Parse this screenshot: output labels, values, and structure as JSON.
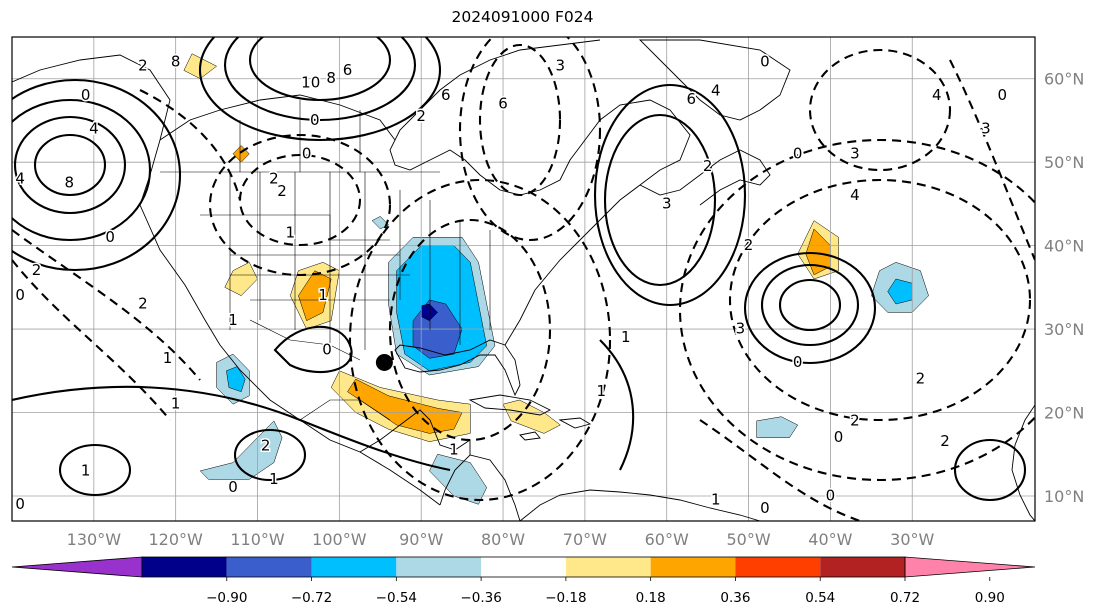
{
  "title": "2024091000 F024",
  "map": {
    "projection": "PlateCarree",
    "lon_range": [
      -140,
      -15
    ],
    "lat_range": [
      7,
      65
    ],
    "lon_ticks": [
      "130°W",
      "120°W",
      "110°W",
      "100°W",
      "90°W",
      "80°W",
      "70°W",
      "60°W",
      "50°W",
      "40°W",
      "30°W"
    ],
    "lat_ticks": [
      "60°N",
      "50°N",
      "40°N",
      "30°N",
      "20°N",
      "10°N"
    ],
    "grid": true,
    "marker": {
      "lon": -94.5,
      "lat": 26.0,
      "symbol": "filled-circle"
    }
  },
  "colorbar": {
    "orientation": "horizontal",
    "extend": "both",
    "bounds": [
      "−0.90",
      "−0.72",
      "−0.54",
      "−0.36",
      "−0.18",
      "0.18",
      "0.36",
      "0.54",
      "0.72",
      "0.90"
    ],
    "colors": [
      "#9932cc",
      "#00008b",
      "#3a5fcd",
      "#00bfff",
      "#add8e6",
      "#ffffff",
      "#ffe88a",
      "#ffa500",
      "#ff3f00",
      "#b22222",
      "#ff82ab"
    ]
  },
  "contour_labels": [
    {
      "text": "2",
      "lon": -124,
      "lat": 61.5
    },
    {
      "text": "8",
      "lon": -120,
      "lat": 62
    },
    {
      "text": "10",
      "lon": -103.5,
      "lat": 59.5
    },
    {
      "text": "8",
      "lon": -101,
      "lat": 60
    },
    {
      "text": "6",
      "lon": -99,
      "lat": 61
    },
    {
      "text": "6",
      "lon": -87,
      "lat": 58
    },
    {
      "text": "2",
      "lon": -90,
      "lat": 55.5
    },
    {
      "text": "0",
      "lon": -103,
      "lat": 55
    },
    {
      "text": "0",
      "lon": -104,
      "lat": 51
    },
    {
      "text": "0",
      "lon": -131,
      "lat": 58
    },
    {
      "text": "4",
      "lon": -130,
      "lat": 54
    },
    {
      "text": "8",
      "lon": -133,
      "lat": 47.5
    },
    {
      "text": "4",
      "lon": -139,
      "lat": 48
    },
    {
      "text": "2",
      "lon": -107,
      "lat": 46.5
    },
    {
      "text": "1",
      "lon": -106,
      "lat": 41.5
    },
    {
      "text": "2",
      "lon": -108,
      "lat": 48
    },
    {
      "text": "1",
      "lon": -102,
      "lat": 34
    },
    {
      "text": "2",
      "lon": -124,
      "lat": 33
    },
    {
      "text": "1",
      "lon": -120,
      "lat": 21
    },
    {
      "text": "0",
      "lon": -128,
      "lat": 41
    },
    {
      "text": "2",
      "lon": -137,
      "lat": 37
    },
    {
      "text": "0",
      "lon": -139,
      "lat": 34
    },
    {
      "text": "1",
      "lon": -121,
      "lat": 26.5
    },
    {
      "text": "0",
      "lon": -101.5,
      "lat": 27.5
    },
    {
      "text": "1",
      "lon": -113,
      "lat": 31
    },
    {
      "text": "2",
      "lon": -109,
      "lat": 16
    },
    {
      "text": "1",
      "lon": -108,
      "lat": 12
    },
    {
      "text": "1",
      "lon": -131,
      "lat": 13
    },
    {
      "text": "0",
      "lon": -113,
      "lat": 11
    },
    {
      "text": "0",
      "lon": -139,
      "lat": 9
    },
    {
      "text": "1",
      "lon": -68,
      "lat": 22.5
    },
    {
      "text": "3",
      "lon": -73,
      "lat": 61.5
    },
    {
      "text": "6",
      "lon": -80,
      "lat": 57
    },
    {
      "text": "6",
      "lon": -57,
      "lat": 57.5
    },
    {
      "text": "4",
      "lon": -54,
      "lat": 58.5
    },
    {
      "text": "0",
      "lon": -48,
      "lat": 62
    },
    {
      "text": "2",
      "lon": -55,
      "lat": 49.5
    },
    {
      "text": "3",
      "lon": -37,
      "lat": 51
    },
    {
      "text": "0",
      "lon": -44,
      "lat": 51
    },
    {
      "text": "4",
      "lon": -37,
      "lat": 46
    },
    {
      "text": "2",
      "lon": -50,
      "lat": 40
    },
    {
      "text": "4",
      "lon": -27,
      "lat": 58
    },
    {
      "text": "3",
      "lon": -21,
      "lat": 54
    },
    {
      "text": "0",
      "lon": -19,
      "lat": 58
    },
    {
      "text": "3",
      "lon": -51,
      "lat": 30
    },
    {
      "text": "0",
      "lon": -44,
      "lat": 26
    },
    {
      "text": "1",
      "lon": -65,
      "lat": 29
    },
    {
      "text": "2",
      "lon": -29,
      "lat": 24
    },
    {
      "text": "2",
      "lon": -37,
      "lat": 19
    },
    {
      "text": "0",
      "lon": -39,
      "lat": 17
    },
    {
      "text": "2",
      "lon": -26,
      "lat": 16.5
    },
    {
      "text": "0",
      "lon": -40,
      "lat": 10
    },
    {
      "text": "1",
      "lon": -54,
      "lat": 9.5
    },
    {
      "text": "0",
      "lon": -48,
      "lat": 8.5
    },
    {
      "text": "1",
      "lon": -86,
      "lat": 15.5
    },
    {
      "text": "3",
      "lon": -60,
      "lat": 45
    }
  ],
  "shaded_regions": [
    {
      "class": "neg-0.54-0.36",
      "points": [
        [
          -86,
          40
        ],
        [
          -84,
          38
        ],
        [
          -83,
          33
        ],
        [
          -82,
          28
        ],
        [
          -84,
          26
        ],
        [
          -89,
          25
        ],
        [
          -92,
          27
        ],
        [
          -93,
          32
        ],
        [
          -93,
          37
        ],
        [
          -90,
          40
        ]
      ]
    },
    {
      "class": "neg-0.36-0.18",
      "points": [
        [
          -85,
          41
        ],
        [
          -83,
          38
        ],
        [
          -82,
          33
        ],
        [
          -81,
          28
        ],
        [
          -83,
          25.5
        ],
        [
          -89,
          24.5
        ],
        [
          -93,
          27
        ],
        [
          -94,
          33
        ],
        [
          -94,
          38
        ],
        [
          -91,
          41
        ]
      ]
    },
    {
      "class": "neg-0.72-0.54",
      "points": [
        [
          -87,
          33
        ],
        [
          -85,
          30
        ],
        [
          -86,
          27
        ],
        [
          -89,
          26.5
        ],
        [
          -91,
          28
        ],
        [
          -91,
          31
        ],
        [
          -89,
          33.5
        ]
      ]
    },
    {
      "class": "neg-0.90-0.72",
      "points": [
        [
          -89,
          33
        ],
        [
          -88,
          32
        ],
        [
          -89,
          31
        ],
        [
          -90,
          31.5
        ],
        [
          -90,
          32.8
        ]
      ]
    },
    {
      "class": "pos-0.36-0.54",
      "points": [
        [
          -98,
          24
        ],
        [
          -94,
          22
        ],
        [
          -88,
          20.5
        ],
        [
          -85,
          20
        ],
        [
          -86,
          18
        ],
        [
          -89,
          17.5
        ],
        [
          -93,
          18.5
        ],
        [
          -96,
          20.5
        ],
        [
          -99,
          22.5
        ]
      ]
    },
    {
      "class": "pos-0.18-0.36",
      "points": [
        [
          -100,
          25
        ],
        [
          -95,
          23
        ],
        [
          -88,
          21.5
        ],
        [
          -84,
          21
        ],
        [
          -84,
          17.5
        ],
        [
          -89,
          16.5
        ],
        [
          -94,
          18
        ],
        [
          -98,
          20
        ],
        [
          -101,
          23
        ]
      ]
    },
    {
      "class": "pos-0.36-0.54",
      "points": [
        [
          -103,
          37
        ],
        [
          -101,
          36
        ],
        [
          -102,
          32
        ],
        [
          -104,
          31
        ],
        [
          -105,
          34
        ]
      ]
    },
    {
      "class": "pos-0.18-0.36",
      "points": [
        [
          -102,
          38
        ],
        [
          -100,
          37
        ],
        [
          -101,
          31
        ],
        [
          -104,
          30
        ],
        [
          -106,
          34
        ],
        [
          -105,
          37
        ]
      ]
    },
    {
      "class": "pos-0.18-0.36",
      "points": [
        [
          -111,
          38
        ],
        [
          -110,
          36
        ],
        [
          -112,
          34
        ],
        [
          -114,
          35
        ],
        [
          -113,
          37
        ]
      ]
    },
    {
      "class": "pos-0.18-0.36",
      "points": [
        [
          -78,
          21.5
        ],
        [
          -75,
          20
        ],
        [
          -73,
          18.5
        ],
        [
          -75,
          17.5
        ],
        [
          -79,
          19
        ],
        [
          -80,
          21
        ]
      ]
    },
    {
      "class": "pos-0.36-0.54",
      "points": [
        [
          -42,
          42
        ],
        [
          -40,
          40
        ],
        [
          -40,
          37.5
        ],
        [
          -42,
          36.5
        ],
        [
          -43,
          39
        ]
      ]
    },
    {
      "class": "pos-0.18-0.36",
      "points": [
        [
          -42,
          43
        ],
        [
          -39,
          41
        ],
        [
          -39,
          37
        ],
        [
          -42,
          36
        ],
        [
          -44,
          39
        ]
      ]
    },
    {
      "class": "neg-0.36-0.18",
      "points": [
        [
          -32,
          38
        ],
        [
          -29,
          37
        ],
        [
          -28,
          34
        ],
        [
          -30,
          32
        ],
        [
          -33,
          32
        ],
        [
          -35,
          34
        ],
        [
          -34,
          37
        ]
      ]
    },
    {
      "class": "neg-0.54-0.36",
      "points": [
        [
          -32,
          36
        ],
        [
          -30,
          35.5
        ],
        [
          -30,
          33.5
        ],
        [
          -32,
          33
        ],
        [
          -33,
          34.5
        ]
      ]
    },
    {
      "class": "neg-0.36-0.18",
      "points": [
        [
          -113,
          27
        ],
        [
          -111,
          25
        ],
        [
          -111,
          22
        ],
        [
          -113,
          21
        ],
        [
          -115,
          23
        ],
        [
          -115,
          26
        ]
      ]
    },
    {
      "class": "neg-0.54-0.36",
      "points": [
        [
          -112.5,
          25.5
        ],
        [
          -111.5,
          24
        ],
        [
          -112,
          22.5
        ],
        [
          -113.5,
          23
        ],
        [
          -113.8,
          25
        ]
      ]
    },
    {
      "class": "neg-0.36-0.18",
      "points": [
        [
          -116,
          12
        ],
        [
          -111,
          12
        ],
        [
          -108,
          14
        ],
        [
          -107,
          17
        ],
        [
          -108,
          19
        ],
        [
          -110,
          17
        ],
        [
          -113,
          14
        ],
        [
          -117,
          13
        ]
      ]
    },
    {
      "class": "neg-0.36-0.18",
      "points": [
        [
          -88,
          15
        ],
        [
          -84,
          14
        ],
        [
          -82,
          11
        ],
        [
          -83,
          9
        ],
        [
          -86,
          10
        ],
        [
          -89,
          13
        ]
      ]
    },
    {
      "class": "neg-0.36-0.18",
      "points": [
        [
          -49,
          19
        ],
        [
          -46,
          19.5
        ],
        [
          -44,
          18.5
        ],
        [
          -45,
          17
        ],
        [
          -49,
          17
        ]
      ]
    },
    {
      "class": "pos-0.18-0.36",
      "points": [
        [
          -118,
          63
        ],
        [
          -115,
          61.5
        ],
        [
          -117,
          60
        ],
        [
          -119,
          61
        ]
      ]
    },
    {
      "class": "pos-0.36-0.54",
      "points": [
        [
          -112,
          52
        ],
        [
          -111,
          51
        ],
        [
          -112,
          50
        ],
        [
          -113,
          51
        ]
      ]
    },
    {
      "class": "neg-0.36-0.18",
      "points": [
        [
          -95,
          43.5
        ],
        [
          -94,
          42.5
        ],
        [
          -95,
          42
        ],
        [
          -96,
          43
        ]
      ]
    }
  ]
}
